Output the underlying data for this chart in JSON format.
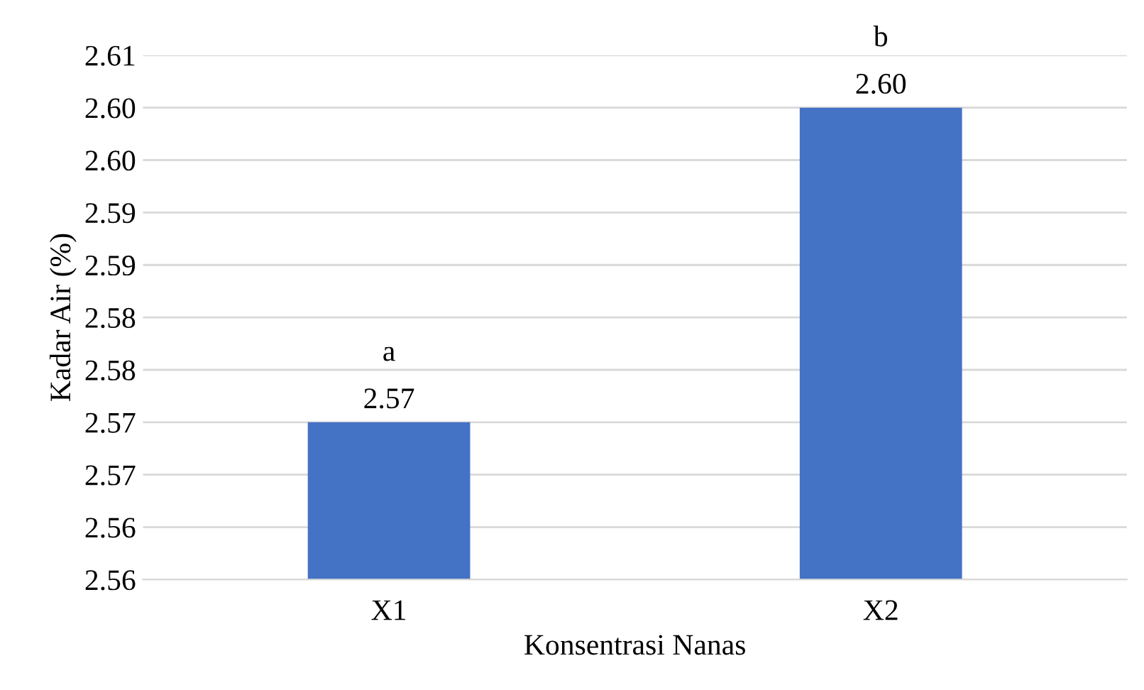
{
  "chart_data": {
    "type": "bar",
    "xlabel": "Konsentrasi Nanas",
    "ylabel": "Kadar Air (%)",
    "categories": [
      "X1",
      "X2"
    ],
    "values": [
      2.57,
      2.6
    ],
    "color": "#4472c4",
    "value_labels": [
      "2.57",
      "2.60"
    ],
    "annotations": [
      {
        "text": "a",
        "x": "X1",
        "y": 2.57
      },
      {
        "text": "b",
        "x": "X2",
        "y": 2.6
      }
    ],
    "ylim": [
      2.555,
      2.605
    ],
    "yticks": [
      {
        "value": 2.555,
        "label": "2.56"
      },
      {
        "value": 2.56,
        "label": "2.56"
      },
      {
        "value": 2.565,
        "label": "2.57"
      },
      {
        "value": 2.57,
        "label": "2.57"
      },
      {
        "value": 2.575,
        "label": "2.58"
      },
      {
        "value": 2.58,
        "label": "2.58"
      },
      {
        "value": 2.585,
        "label": "2.59"
      },
      {
        "value": 2.59,
        "label": "2.59"
      },
      {
        "value": 2.595,
        "label": "2.60"
      },
      {
        "value": 2.6,
        "label": "2.60"
      },
      {
        "value": 2.605,
        "label": "2.61"
      }
    ],
    "grid": "y",
    "legend": false
  }
}
